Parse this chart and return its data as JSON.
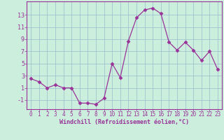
{
  "x": [
    0,
    1,
    2,
    3,
    4,
    5,
    6,
    7,
    8,
    9,
    10,
    11,
    12,
    13,
    14,
    15,
    16,
    17,
    18,
    19,
    20,
    21,
    22,
    23
  ],
  "y": [
    2.5,
    2.0,
    1.0,
    1.5,
    1.0,
    1.0,
    -1.5,
    -1.5,
    -1.7,
    -0.7,
    5.0,
    2.7,
    8.7,
    12.5,
    13.8,
    14.1,
    13.2,
    8.5,
    7.2,
    8.5,
    7.2,
    5.5,
    7.0,
    4.0
  ],
  "line_color": "#993399",
  "marker": "D",
  "marker_size": 2.5,
  "bg_color": "#cceedd",
  "grid_color": "#99bbcc",
  "xlabel": "Windchill (Refroidissement éolien,°C)",
  "xlabel_color": "#993399",
  "tick_color": "#993399",
  "yticks": [
    -1,
    1,
    3,
    5,
    7,
    9,
    11,
    13
  ],
  "ylim": [
    -2.5,
    15.2
  ],
  "xlim": [
    -0.5,
    23.5
  ],
  "xticks": [
    0,
    1,
    2,
    3,
    4,
    5,
    6,
    7,
    8,
    9,
    10,
    11,
    12,
    13,
    14,
    15,
    16,
    17,
    18,
    19,
    20,
    21,
    22,
    23
  ]
}
